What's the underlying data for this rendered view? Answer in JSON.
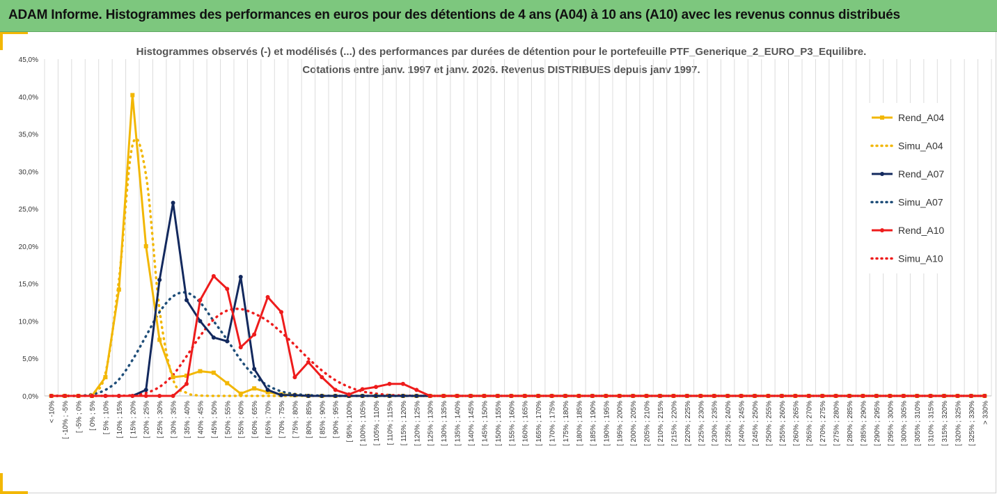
{
  "header": {
    "title": "ADAM Informe. Histogrammes des performances en euros pour des détentions de 4 ans (A04) à 10 ans (A10) avec les revenus connus distribués"
  },
  "chart_data": {
    "type": "line",
    "title_lines": [
      "Histogrammes observés (-) et modélisés (...) des performances par durées de détention pour le portefeuille PTF_Generique_2_EURO_P3_Equilibre.",
      "Cotations entre janv. 1997 et janv. 2026. Revenus DISTRIBUES depuis janv 1997."
    ],
    "xlabel": "",
    "ylabel": "",
    "ylim": [
      0,
      45
    ],
    "yticks": [
      "0,0%",
      "5,0%",
      "10,0%",
      "15,0%",
      "20,0%",
      "25,0%",
      "30,0%",
      "35,0%",
      "40,0%",
      "45,0%"
    ],
    "categories": [
      "< -10%",
      "[ -10% ; -5%",
      "[ -5% ; 0%",
      "[ 0% ; 5%",
      "[ 5% ; 10%",
      "[ 10% ; 15%",
      "[ 15% ; 20%",
      "[ 20% ; 25%",
      "[ 25% ; 30%",
      "[ 30% ; 35%",
      "[ 35% ; 40%",
      "[ 40% ; 45%",
      "[ 45% ; 50%",
      "[ 50% ; 55%",
      "[ 55% ; 60%",
      "[ 60% ; 65%",
      "[ 65% ; 70%",
      "[ 70% ; 75%",
      "[ 75% ; 80%",
      "[ 80% ; 85%",
      "[ 85% ; 90%",
      "[ 90% ; 95%",
      "[ 95% ; 100%",
      "[ 100% ; 105%",
      "[ 105% ; 110%",
      "[ 110% ; 115%",
      "[ 115% ; 120%",
      "[ 120% ; 125%",
      "[ 125% ; 130%",
      "[ 130% ; 135%",
      "[ 135% ; 140%",
      "[ 140% ; 145%",
      "[ 145% ; 150%",
      "[ 150% ; 155%",
      "[ 155% ; 160%",
      "[ 160% ; 165%",
      "[ 165% ; 170%",
      "[ 170% ; 175%",
      "[ 175% ; 180%",
      "[ 180% ; 185%",
      "[ 185% ; 190%",
      "[ 190% ; 195%",
      "[ 195% ; 200%",
      "[ 200% ; 205%",
      "[ 205% ; 210%",
      "[ 210% ; 215%",
      "[ 215% ; 220%",
      "[ 220% ; 225%",
      "[ 225% ; 230%",
      "[ 230% ; 235%",
      "[ 235% ; 240%",
      "[ 240% ; 245%",
      "[ 245% ; 250%",
      "[ 250% ; 255%",
      "[ 255% ; 260%",
      "[ 260% ; 265%",
      "[ 265% ; 270%",
      "[ 270% ; 275%",
      "[ 275% ; 280%",
      "[ 280% ; 285%",
      "[ 285% ; 290%",
      "[ 290% ; 295%",
      "[ 295% ; 300%",
      "[ 300% ; 305%",
      "[ 305% ; 310%",
      "[ 310% ; 315%",
      "[ 315% ; 320%",
      "[ 320% ; 325%",
      "[ 325% ; 330%",
      "> 330%"
    ],
    "series": [
      {
        "name": "Rend_A04",
        "color": "#f2b705",
        "style": "solid",
        "marker": "square",
        "values": [
          0,
          0,
          0,
          0,
          2.5,
          14.2,
          40.2,
          20.0,
          7.5,
          2.5,
          2.7,
          3.3,
          3.1,
          1.7,
          0.3,
          1.0,
          0.5,
          0.2,
          0.1,
          0,
          0,
          0,
          0,
          0,
          0,
          0,
          0,
          0,
          0,
          0,
          0,
          0,
          0,
          0,
          0,
          0,
          0,
          0,
          0,
          0,
          0,
          0,
          0,
          0,
          0,
          0,
          0,
          0,
          0,
          0,
          0,
          0,
          0,
          0,
          0,
          0,
          0,
          0,
          0,
          0,
          0,
          0,
          0,
          0,
          0,
          0,
          0,
          0,
          0,
          0
        ]
      },
      {
        "name": "Simu_A04",
        "color": "#f2b705",
        "style": "dotted",
        "marker": "none",
        "values": [
          0,
          0,
          0,
          0.3,
          3.0,
          15.5,
          33.5,
          29.5,
          11.5,
          2.2,
          0.4,
          0.05,
          0,
          0,
          0,
          0,
          0,
          0,
          0,
          0,
          0,
          0,
          0,
          0,
          0,
          0,
          0,
          0,
          0,
          0,
          0,
          0,
          0,
          0,
          0,
          0,
          0,
          0,
          0,
          0,
          0,
          0,
          0,
          0,
          0,
          0,
          0,
          0,
          0,
          0,
          0,
          0,
          0,
          0,
          0,
          0,
          0,
          0,
          0,
          0,
          0,
          0,
          0,
          0,
          0,
          0,
          0,
          0,
          0,
          0
        ]
      },
      {
        "name": "Rend_A07",
        "color": "#13295e",
        "style": "solid",
        "marker": "circle",
        "values": [
          0,
          0,
          0,
          0,
          0,
          0,
          0,
          0.8,
          15.5,
          25.8,
          12.8,
          10.0,
          7.8,
          7.3,
          15.9,
          3.6,
          0.8,
          0.1,
          0.1,
          0,
          0,
          0,
          0,
          0,
          0,
          0,
          0,
          0,
          0,
          0,
          0,
          0,
          0,
          0,
          0,
          0,
          0,
          0,
          0,
          0,
          0,
          0,
          0,
          0,
          0,
          0,
          0,
          0,
          0,
          0,
          0,
          0,
          0,
          0,
          0,
          0,
          0,
          0,
          0,
          0,
          0,
          0,
          0,
          0,
          0,
          0,
          0,
          0,
          0,
          0
        ]
      },
      {
        "name": "Simu_A07",
        "color": "#1f4e79",
        "style": "dotted",
        "marker": "none",
        "values": [
          0,
          0,
          0,
          0.2,
          0.8,
          2.2,
          4.8,
          8.0,
          11.2,
          13.3,
          13.8,
          12.5,
          10.0,
          7.5,
          4.8,
          2.7,
          1.4,
          0.6,
          0.25,
          0.1,
          0.03,
          0,
          0,
          0,
          0,
          0,
          0,
          0,
          0,
          0,
          0,
          0,
          0,
          0,
          0,
          0,
          0,
          0,
          0,
          0,
          0,
          0,
          0,
          0,
          0,
          0,
          0,
          0,
          0,
          0,
          0,
          0,
          0,
          0,
          0,
          0,
          0,
          0,
          0,
          0,
          0,
          0,
          0,
          0,
          0,
          0,
          0,
          0,
          0,
          0
        ]
      },
      {
        "name": "Rend_A10",
        "color": "#ee1c1c",
        "style": "solid",
        "marker": "circle",
        "values": [
          0,
          0,
          0,
          0,
          0,
          0,
          0,
          0,
          0,
          0,
          1.6,
          12.8,
          16.0,
          14.3,
          6.5,
          8.2,
          13.2,
          11.2,
          2.5,
          4.5,
          2.5,
          0.8,
          0.2,
          0.9,
          1.2,
          1.6,
          1.6,
          0.8,
          0,
          0,
          0,
          0,
          0,
          0,
          0,
          0,
          0,
          0,
          0,
          0,
          0,
          0,
          0,
          0,
          0,
          0,
          0,
          0,
          0,
          0,
          0,
          0,
          0,
          0,
          0,
          0,
          0,
          0,
          0,
          0,
          0,
          0,
          0,
          0,
          0,
          0,
          0,
          0,
          0,
          0
        ]
      },
      {
        "name": "Simu_A10",
        "color": "#ee1c1c",
        "style": "dotted",
        "marker": "none",
        "values": [
          0,
          0,
          0,
          0,
          0,
          0,
          0.1,
          0.4,
          1.2,
          2.8,
          5.3,
          8.0,
          10.2,
          11.4,
          11.6,
          11.0,
          10.0,
          8.5,
          6.8,
          5.0,
          3.4,
          2.1,
          1.2,
          0.6,
          0.3,
          0.12,
          0.05,
          0,
          0,
          0,
          0,
          0,
          0,
          0,
          0,
          0,
          0,
          0,
          0,
          0,
          0,
          0,
          0,
          0,
          0,
          0,
          0,
          0,
          0,
          0,
          0,
          0,
          0,
          0,
          0,
          0,
          0,
          0,
          0,
          0,
          0,
          0,
          0,
          0,
          0,
          0,
          0,
          0,
          0,
          0
        ]
      }
    ],
    "legend": {
      "position": "right"
    },
    "grid": {
      "vertical": true,
      "horizontal": false
    }
  }
}
